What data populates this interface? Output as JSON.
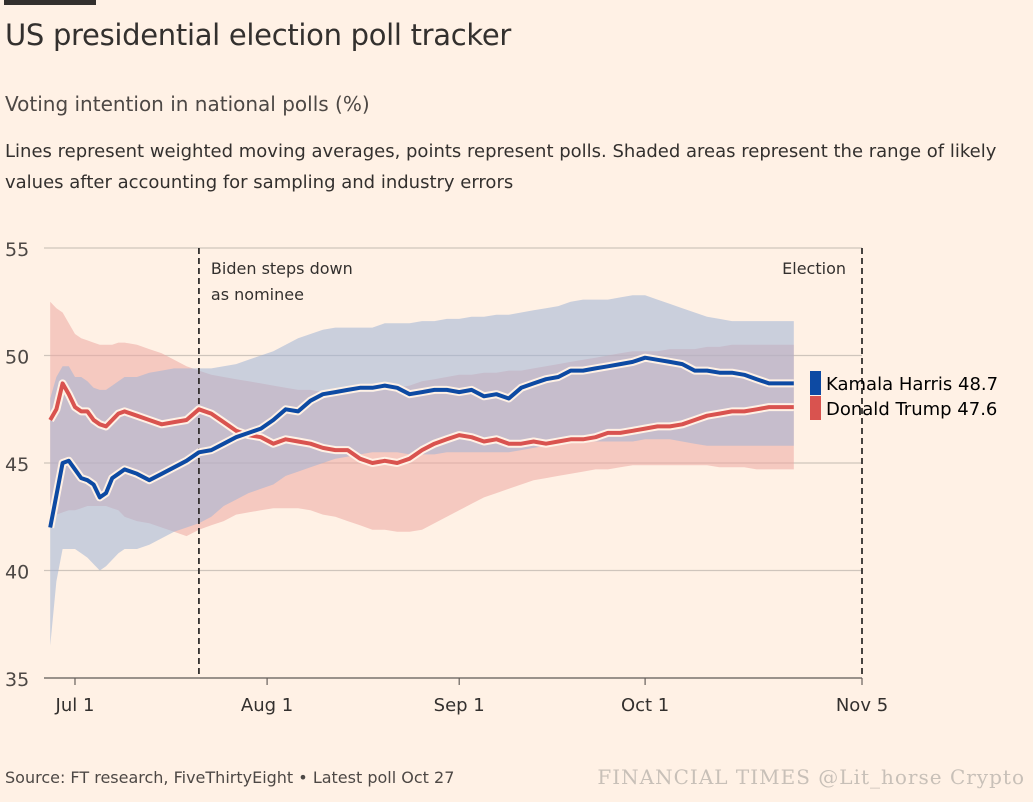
{
  "header": {
    "title": "US presidential election poll tracker",
    "subtitle": "Voting intention in national polls (%)",
    "description": "Lines represent weighted moving averages, points represent polls. Shaded areas represent the range of likely values after accounting for sampling and industry errors"
  },
  "footer": {
    "source": "Source: FT research, FiveThirtyEight • Latest poll Oct 27",
    "watermark": "FINANCIAL TIMES @Lit_horse Crypto"
  },
  "colors": {
    "background": "#fff1e5",
    "harris": "#0d4aa3",
    "trump": "#d9534f",
    "harris_band": "#9fb3d6",
    "trump_band": "#eda7a2",
    "grid": "#cfc5bc"
  },
  "chart_data": {
    "type": "line",
    "title": "US presidential election poll tracker",
    "ylabel": "Voting intention in national polls (%)",
    "ylim": [
      35,
      55
    ],
    "yticks": [
      "35",
      "40",
      "45",
      "50",
      "55"
    ],
    "x_range_days": [
      -5,
      127
    ],
    "xticks": [
      {
        "day": 0,
        "label": "Jul 1"
      },
      {
        "day": 31,
        "label": "Aug 1"
      },
      {
        "day": 62,
        "label": "Sep 1"
      },
      {
        "day": 92,
        "label": "Oct 1"
      },
      {
        "day": 127,
        "label": "Nov 5"
      }
    ],
    "annotations": [
      {
        "day": 20,
        "label_lines": [
          "Biden steps down",
          "as nominee"
        ]
      },
      {
        "day": 127,
        "label_lines": [
          "Election"
        ]
      }
    ],
    "series": [
      {
        "name": "Kamala Harris",
        "end_label": "Kamala Harris 48.7",
        "color": "#0d4aa3",
        "x": [
          -4,
          -3,
          -2,
          -1,
          0,
          1,
          2,
          3,
          4,
          5,
          6,
          7,
          8,
          10,
          12,
          14,
          16,
          18,
          20,
          22,
          24,
          26,
          28,
          30,
          32,
          34,
          36,
          38,
          40,
          42,
          44,
          46,
          48,
          50,
          52,
          54,
          56,
          58,
          60,
          62,
          64,
          66,
          68,
          70,
          72,
          74,
          76,
          78,
          80,
          82,
          84,
          86,
          88,
          90,
          92,
          94,
          96,
          98,
          100,
          102,
          104,
          106,
          108,
          110,
          112,
          114,
          116
        ],
        "values": [
          42.0,
          43.5,
          45.0,
          45.1,
          44.7,
          44.3,
          44.2,
          44.0,
          43.4,
          43.6,
          44.3,
          44.5,
          44.7,
          44.5,
          44.2,
          44.5,
          44.8,
          45.1,
          45.5,
          45.6,
          45.9,
          46.2,
          46.4,
          46.6,
          47.0,
          47.5,
          47.4,
          47.9,
          48.2,
          48.3,
          48.4,
          48.5,
          48.5,
          48.6,
          48.5,
          48.2,
          48.3,
          48.4,
          48.4,
          48.3,
          48.4,
          48.1,
          48.2,
          48.0,
          48.5,
          48.7,
          48.9,
          49.0,
          49.3,
          49.3,
          49.4,
          49.5,
          49.6,
          49.7,
          49.9,
          49.8,
          49.7,
          49.6,
          49.3,
          49.3,
          49.2,
          49.2,
          49.1,
          48.9,
          48.7,
          48.7,
          48.7
        ],
        "band_upper": [
          48,
          49,
          49.5,
          49.5,
          49,
          49,
          48.8,
          48.5,
          48.4,
          48.4,
          48.6,
          48.8,
          49,
          49,
          49.2,
          49.3,
          49.4,
          49.4,
          49.4,
          49.4,
          49.5,
          49.6,
          49.8,
          50,
          50.2,
          50.5,
          50.8,
          51.0,
          51.2,
          51.3,
          51.3,
          51.3,
          51.3,
          51.5,
          51.5,
          51.5,
          51.6,
          51.6,
          51.7,
          51.7,
          51.8,
          51.8,
          51.9,
          51.9,
          52.0,
          52.1,
          52.2,
          52.3,
          52.5,
          52.6,
          52.6,
          52.6,
          52.7,
          52.8,
          52.8,
          52.6,
          52.4,
          52.2,
          52.0,
          51.8,
          51.7,
          51.6,
          51.6,
          51.6,
          51.6,
          51.6,
          51.6
        ],
        "band_lower": [
          36.5,
          39.5,
          41.0,
          41.0,
          41.0,
          40.8,
          40.6,
          40.3,
          40.0,
          40.2,
          40.5,
          40.8,
          41.0,
          41.0,
          41.2,
          41.5,
          41.8,
          42.0,
          42.2,
          42.5,
          43.0,
          43.3,
          43.6,
          43.8,
          44.0,
          44.4,
          44.6,
          44.8,
          45.0,
          45.2,
          45.3,
          45.4,
          45.5,
          45.5,
          45.5,
          45.4,
          45.4,
          45.4,
          45.5,
          45.5,
          45.5,
          45.5,
          45.5,
          45.5,
          45.6,
          45.7,
          45.8,
          45.9,
          46.0,
          46.0,
          46.0,
          46.0,
          46.0,
          46.0,
          46.1,
          46.1,
          46.1,
          46.0,
          45.9,
          45.8,
          45.8,
          45.8,
          45.8,
          45.8,
          45.8,
          45.8,
          45.8
        ]
      },
      {
        "name": "Donald Trump",
        "end_label": "Donald Trump 47.6",
        "color": "#d9534f",
        "x": [
          -4,
          -3,
          -2,
          -1,
          0,
          1,
          2,
          3,
          4,
          5,
          6,
          7,
          8,
          10,
          12,
          14,
          16,
          18,
          20,
          22,
          24,
          26,
          28,
          30,
          32,
          34,
          36,
          38,
          40,
          42,
          44,
          46,
          48,
          50,
          52,
          54,
          56,
          58,
          60,
          62,
          64,
          66,
          68,
          70,
          72,
          74,
          76,
          78,
          80,
          82,
          84,
          86,
          88,
          90,
          92,
          94,
          96,
          98,
          100,
          102,
          104,
          106,
          108,
          110,
          112,
          114,
          116
        ],
        "values": [
          47.0,
          47.5,
          48.7,
          48.2,
          47.6,
          47.4,
          47.4,
          47.0,
          46.8,
          46.7,
          47.0,
          47.3,
          47.4,
          47.2,
          47.0,
          46.8,
          46.9,
          47.0,
          47.5,
          47.3,
          46.9,
          46.5,
          46.3,
          46.2,
          45.9,
          46.1,
          46.0,
          45.9,
          45.7,
          45.6,
          45.6,
          45.2,
          45.0,
          45.1,
          45.0,
          45.2,
          45.6,
          45.9,
          46.1,
          46.3,
          46.2,
          46.0,
          46.1,
          45.9,
          45.9,
          46.0,
          45.9,
          46.0,
          46.1,
          46.1,
          46.2,
          46.4,
          46.4,
          46.5,
          46.6,
          46.7,
          46.7,
          46.8,
          47.0,
          47.2,
          47.3,
          47.4,
          47.4,
          47.5,
          47.6,
          47.6,
          47.6
        ],
        "band_upper": [
          52.5,
          52.2,
          52.0,
          51.5,
          51.0,
          50.8,
          50.7,
          50.6,
          50.5,
          50.5,
          50.5,
          50.6,
          50.6,
          50.5,
          50.3,
          50.1,
          49.8,
          49.5,
          49.3,
          49.1,
          49.0,
          48.9,
          48.8,
          48.7,
          48.6,
          48.5,
          48.4,
          48.4,
          48.3,
          48.3,
          48.3,
          48.3,
          48.3,
          48.4,
          48.5,
          48.6,
          48.8,
          48.9,
          49.0,
          49.1,
          49.1,
          49.2,
          49.2,
          49.3,
          49.3,
          49.4,
          49.5,
          49.6,
          49.7,
          49.8,
          49.9,
          50.0,
          50.1,
          50.2,
          50.2,
          50.2,
          50.3,
          50.3,
          50.3,
          50.4,
          50.4,
          50.5,
          50.5,
          50.5,
          50.5,
          50.5,
          50.5
        ],
        "band_lower": [
          42.5,
          42.6,
          42.7,
          42.8,
          42.8,
          42.9,
          43.0,
          43.0,
          43.0,
          43.0,
          42.9,
          42.8,
          42.5,
          42.3,
          42.2,
          42.0,
          41.8,
          41.6,
          41.9,
          42.1,
          42.3,
          42.6,
          42.7,
          42.8,
          42.9,
          42.9,
          42.9,
          42.8,
          42.6,
          42.5,
          42.3,
          42.1,
          41.9,
          41.9,
          41.8,
          41.8,
          41.9,
          42.2,
          42.5,
          42.8,
          43.1,
          43.4,
          43.6,
          43.8,
          44.0,
          44.2,
          44.3,
          44.4,
          44.5,
          44.6,
          44.7,
          44.7,
          44.8,
          44.9,
          44.9,
          44.9,
          44.9,
          44.9,
          44.9,
          44.9,
          44.8,
          44.8,
          44.8,
          44.7,
          44.7,
          44.7,
          44.7
        ]
      }
    ]
  }
}
